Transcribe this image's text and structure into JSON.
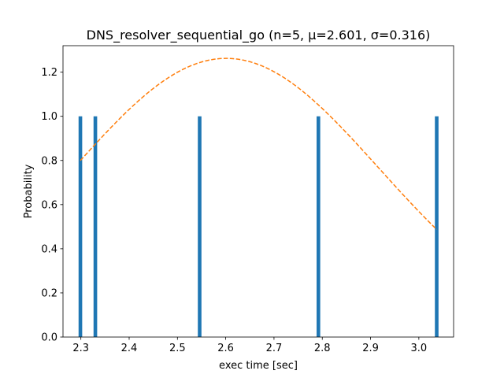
{
  "chart_data": {
    "type": "bar",
    "title": "DNS_resolver_sequential_go (n=5, μ=2.601, σ=0.316)",
    "xlabel": "exec time [sec]",
    "ylabel": "Probability",
    "xlim": [
      2.263,
      3.072
    ],
    "ylim": [
      0,
      1.32
    ],
    "x_ticks": [
      "2.3",
      "2.4",
      "2.5",
      "2.6",
      "2.7",
      "2.8",
      "2.9",
      "3.0"
    ],
    "y_ticks": [
      "0.0",
      "0.2",
      "0.4",
      "0.6",
      "0.8",
      "1.0",
      "1.2"
    ],
    "grid": false,
    "series": [
      {
        "kind": "histogram",
        "color": "#1f77b4",
        "x": [
          2.299,
          2.33,
          2.546,
          2.792,
          3.037
        ],
        "values": [
          1.0,
          1.0,
          1.0,
          1.0,
          1.0
        ]
      },
      {
        "kind": "normal-fit-curve",
        "color": "#ff7f0e",
        "line_style": "dashed",
        "mu": 2.601,
        "sigma": 0.316,
        "x_range": [
          2.299,
          3.037
        ]
      }
    ]
  }
}
